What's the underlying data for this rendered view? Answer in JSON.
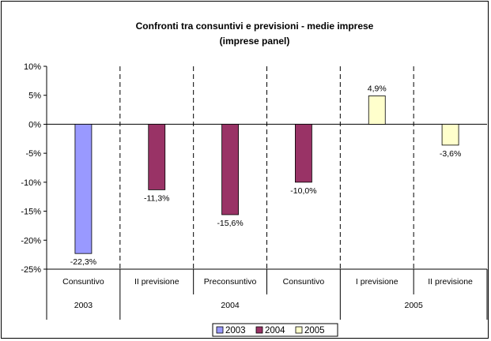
{
  "chart_data": {
    "type": "bar",
    "title": [
      "Confronti tra consuntivi e previsioni - medie imprese",
      "(imprese panel)"
    ],
    "categories": [
      {
        "label": "Consuntivo",
        "group": "2003"
      },
      {
        "label": "II previsione",
        "group": "2004"
      },
      {
        "label": "Preconsuntivo",
        "group": "2004"
      },
      {
        "label": "Consuntivo",
        "group": "2004"
      },
      {
        "label": "I previsione",
        "group": "2005"
      },
      {
        "label": "II previsione",
        "group": "2005"
      }
    ],
    "groups": [
      "2003",
      "2004",
      "2005"
    ],
    "series": [
      {
        "name": "2003",
        "color": "#9999FF",
        "values": [
          -22.3,
          null,
          null,
          null,
          null,
          null
        ]
      },
      {
        "name": "2004",
        "color": "#993366",
        "values": [
          null,
          -11.3,
          -15.6,
          -10.0,
          null,
          null
        ]
      },
      {
        "name": "2005",
        "color": "#FFFFCC",
        "values": [
          null,
          null,
          null,
          null,
          4.9,
          -3.6
        ]
      }
    ],
    "data_labels": [
      "-22,3%",
      "-11,3%",
      "-15,6%",
      "-10,0%",
      "4,9%",
      "-3,6%"
    ],
    "ylim": [
      -25,
      10
    ],
    "yticks": [
      10,
      5,
      0,
      -5,
      -10,
      -15,
      -20,
      -25
    ],
    "ytick_labels": [
      "10%",
      "5%",
      "0%",
      "-5%",
      "-10%",
      "-15%",
      "-20%",
      "-25%"
    ],
    "grid": false,
    "category_separators": "dashed",
    "legend_position": "bottom"
  }
}
